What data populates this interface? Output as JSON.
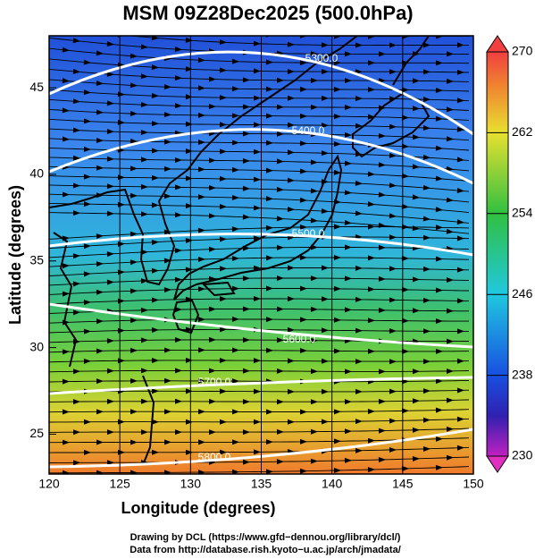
{
  "title": "MSM 09Z28Dec2025 (500.0hPa)",
  "map": {
    "xlabel": "Longitude (degrees)",
    "ylabel": "Latitude  (degrees)",
    "xlim": [
      120,
      150
    ],
    "ylim": [
      22.7,
      48
    ],
    "xticks": [
      120,
      125,
      130,
      135,
      140,
      145,
      150
    ],
    "yticks": [
      25,
      30,
      35,
      40,
      45
    ],
    "contours": [
      {
        "value": 5300,
        "label": "5300.0"
      },
      {
        "value": 5400,
        "label": "5400.0"
      },
      {
        "value": 5500,
        "label": "5500.0"
      },
      {
        "value": 5600,
        "label": "5600.0"
      },
      {
        "value": 5700,
        "label": "5700.0"
      },
      {
        "value": 5800,
        "label": "5800.0"
      }
    ]
  },
  "colorbar": {
    "lim": [
      230,
      270
    ],
    "ticks": [
      230,
      238,
      246,
      254,
      262,
      270
    ]
  },
  "footer": [
    "Drawing by DCL (https://www.gfd−dennou.org/library/dcl/)",
    "Data from http://database.rish.kyoto−u.ac.jp/arch/jmadata/"
  ]
}
